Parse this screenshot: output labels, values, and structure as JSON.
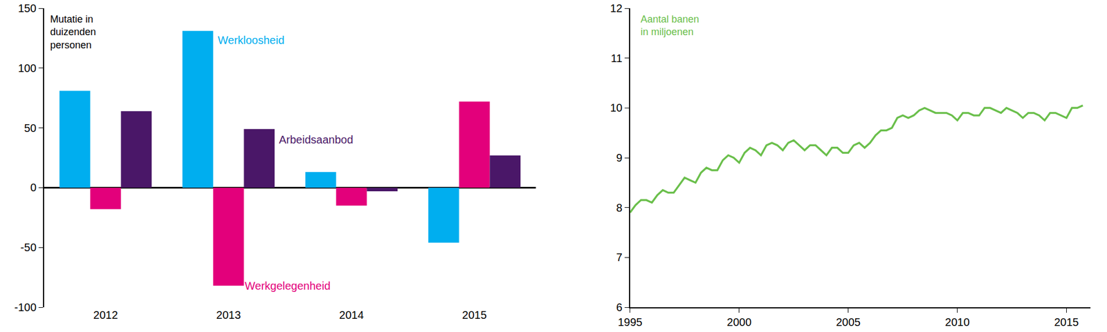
{
  "chart_data": [
    {
      "type": "bar",
      "y_label": "Mutatie in\nduizenden\npersonen",
      "categories": [
        "2012",
        "2013",
        "2014",
        "2015"
      ],
      "series": [
        {
          "name": "Werkloosheid",
          "color": "#00aeef",
          "values": [
            81,
            131,
            13,
            -46
          ]
        },
        {
          "name": "Werkgelegenheid",
          "color": "#e3007b",
          "values": [
            -18,
            -82,
            -15,
            72
          ]
        },
        {
          "name": "Arbeidsaanbod",
          "color": "#4a1768",
          "values": [
            64,
            49,
            -3,
            27
          ]
        }
      ],
      "ylim": [
        -100,
        150
      ],
      "yticks": [
        -100,
        -50,
        0,
        50,
        100,
        150
      ],
      "grid": false
    },
    {
      "type": "line",
      "y_label": "Aantal banen\nin miljoenen",
      "color": "#6abf4b",
      "x": [
        1995,
        1995.25,
        1995.5,
        1995.75,
        1996,
        1996.25,
        1996.5,
        1996.75,
        1997,
        1997.25,
        1997.5,
        1997.75,
        1998,
        1998.25,
        1998.5,
        1998.75,
        1999,
        1999.25,
        1999.5,
        1999.75,
        2000,
        2000.25,
        2000.5,
        2000.75,
        2001,
        2001.25,
        2001.5,
        2001.75,
        2002,
        2002.25,
        2002.5,
        2002.75,
        2003,
        2003.25,
        2003.5,
        2003.75,
        2004,
        2004.25,
        2004.5,
        2004.75,
        2005,
        2005.25,
        2005.5,
        2005.75,
        2006,
        2006.25,
        2006.5,
        2006.75,
        2007,
        2007.25,
        2007.5,
        2007.75,
        2008,
        2008.25,
        2008.5,
        2008.75,
        2009,
        2009.25,
        2009.5,
        2009.75,
        2010,
        2010.25,
        2010.5,
        2010.75,
        2011,
        2011.25,
        2011.5,
        2011.75,
        2012,
        2012.25,
        2012.5,
        2012.75,
        2013,
        2013.25,
        2013.5,
        2013.75,
        2014,
        2014.25,
        2014.5,
        2014.75,
        2015,
        2015.25,
        2015.5,
        2015.75
      ],
      "values": [
        7.9,
        8.05,
        8.15,
        8.15,
        8.1,
        8.25,
        8.35,
        8.3,
        8.3,
        8.45,
        8.6,
        8.55,
        8.5,
        8.7,
        8.8,
        8.75,
        8.75,
        8.95,
        9.05,
        9.0,
        8.9,
        9.1,
        9.2,
        9.15,
        9.05,
        9.25,
        9.3,
        9.25,
        9.15,
        9.3,
        9.35,
        9.25,
        9.15,
        9.25,
        9.25,
        9.15,
        9.05,
        9.2,
        9.2,
        9.1,
        9.1,
        9.25,
        9.3,
        9.2,
        9.3,
        9.45,
        9.55,
        9.55,
        9.6,
        9.8,
        9.85,
        9.8,
        9.85,
        9.95,
        10.0,
        9.95,
        9.9,
        9.9,
        9.9,
        9.85,
        9.75,
        9.9,
        9.9,
        9.85,
        9.85,
        10.0,
        10.0,
        9.95,
        9.9,
        10.0,
        9.95,
        9.9,
        9.8,
        9.9,
        9.9,
        9.85,
        9.75,
        9.9,
        9.9,
        9.85,
        9.8,
        10.0,
        10.0,
        10.05
      ],
      "xlim": [
        1995,
        2016.1
      ],
      "xticks": [
        1995,
        2000,
        2005,
        2010,
        2015
      ],
      "ylim": [
        6,
        12
      ],
      "yticks": [
        6,
        7,
        8,
        9,
        10,
        11,
        12
      ],
      "grid": false
    }
  ]
}
